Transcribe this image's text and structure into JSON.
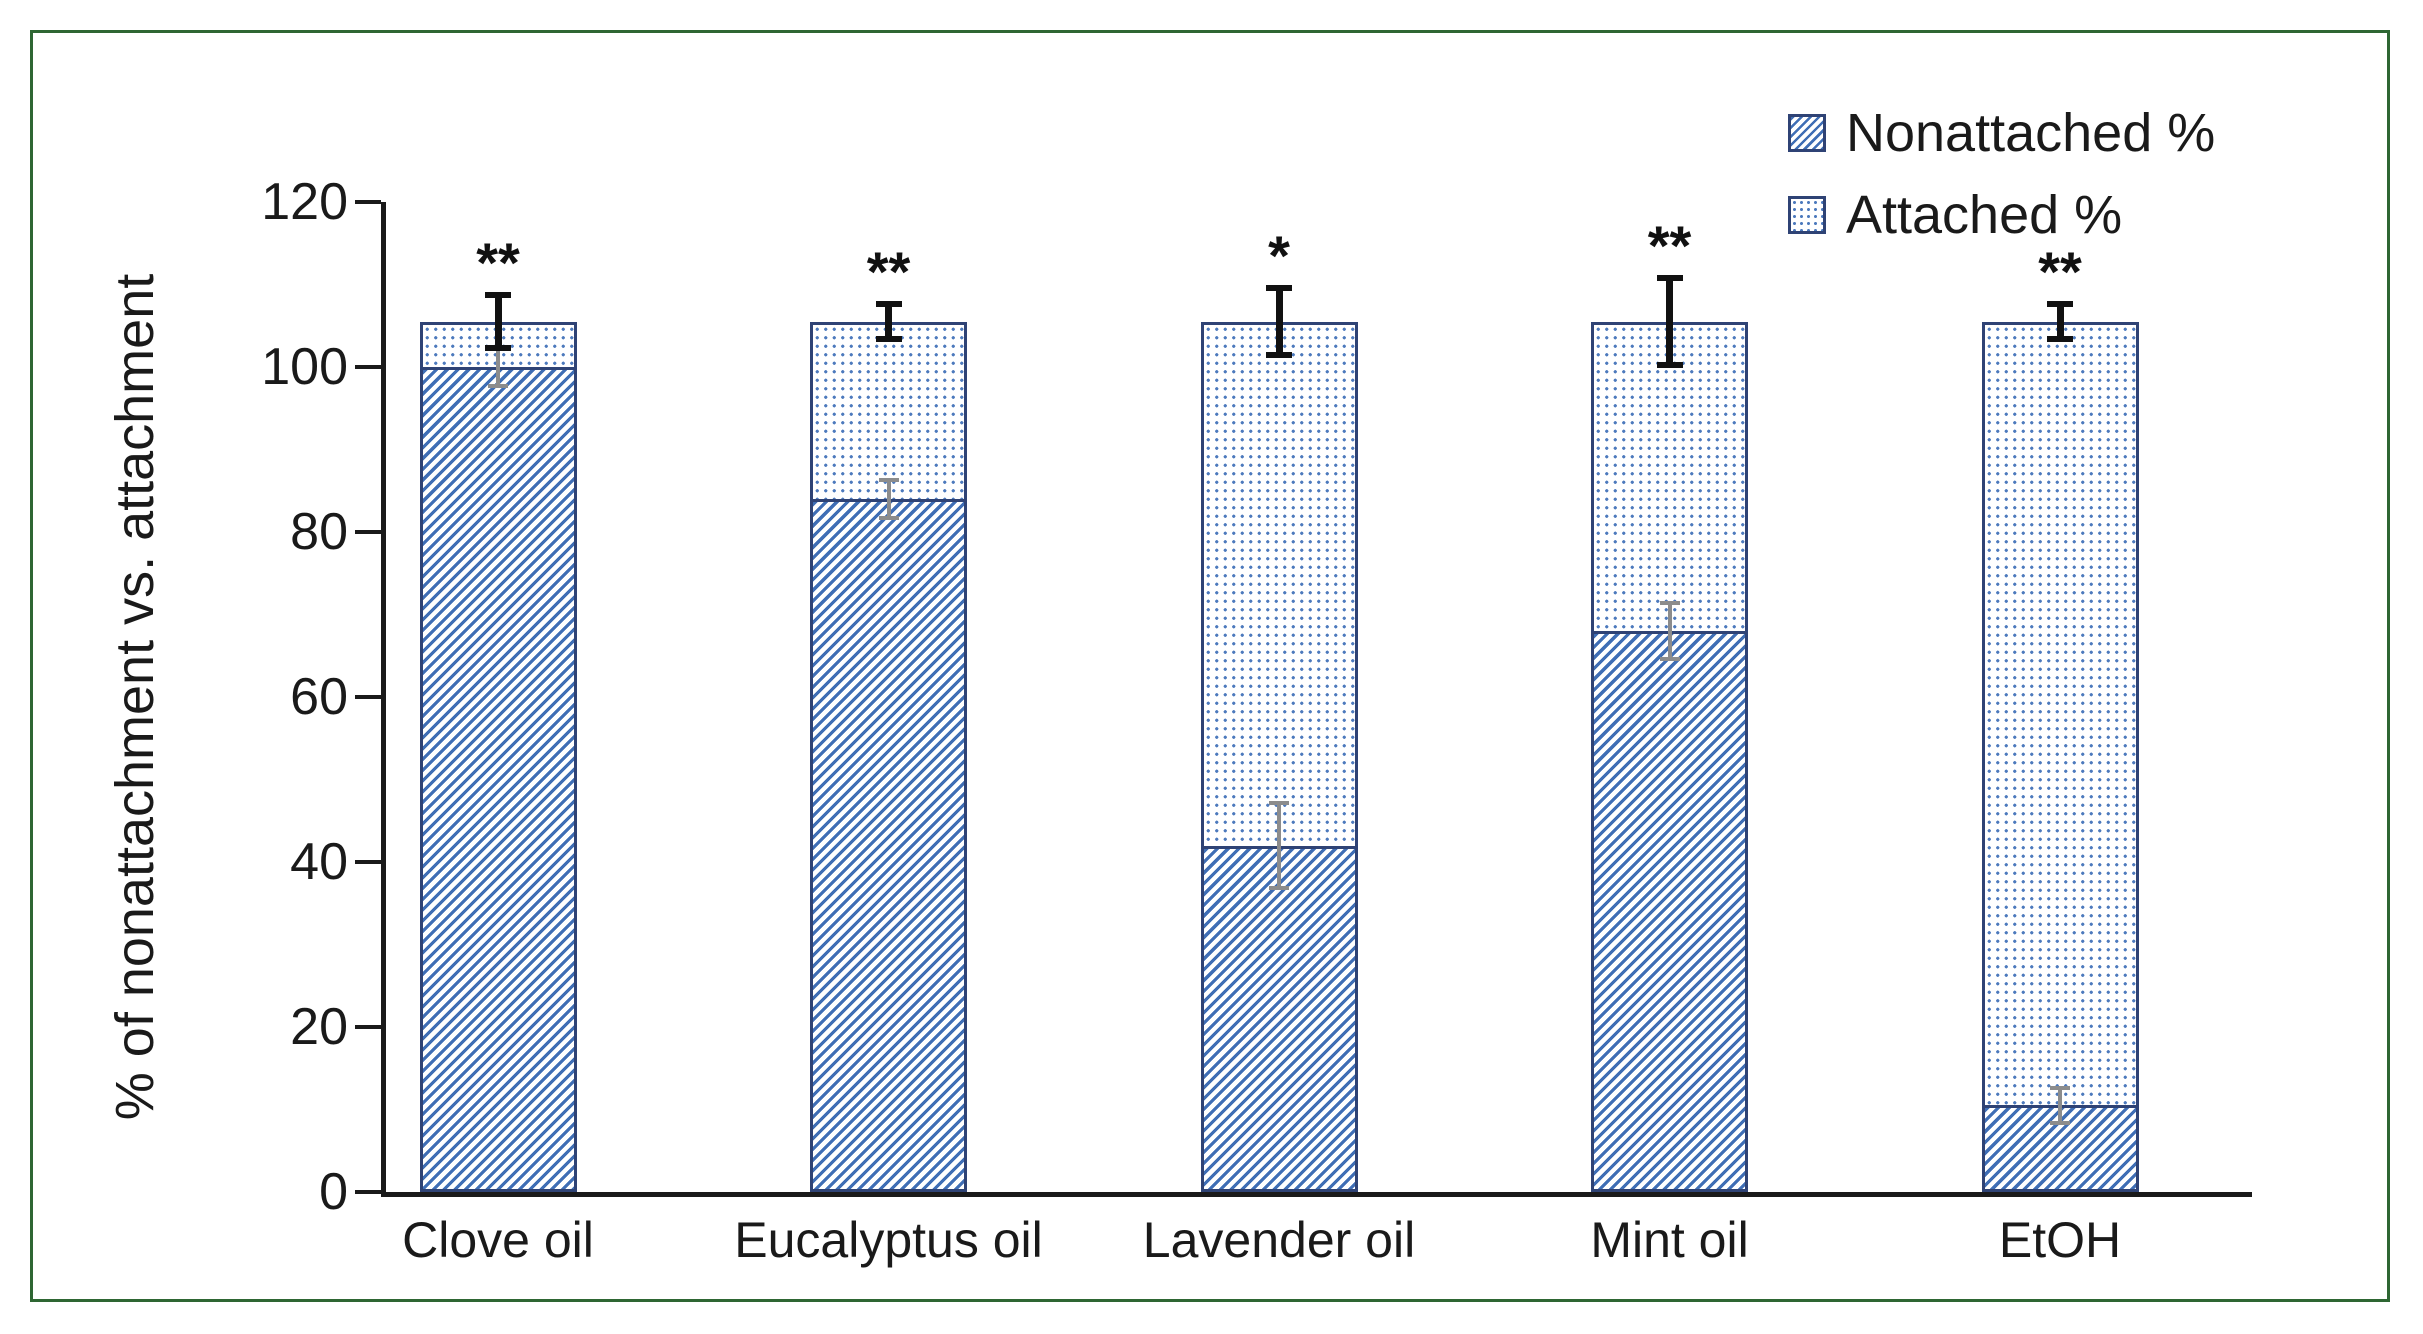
{
  "figure": {
    "frame_color": "#2e6633",
    "background": "#ffffff"
  },
  "colors": {
    "hatch_blue": "#3f6eb5",
    "dot_blue": "#4d7abd",
    "bar_border": "#2f4375",
    "error_black": "#111111",
    "error_gray": "#8c8c8c",
    "axis_black": "#1a1a1a"
  },
  "chart_data": {
    "type": "bar",
    "stacked": true,
    "grid": false,
    "title": "",
    "xlabel": "",
    "ylabel": "% of nonattachment vs. attachment",
    "ylim": [
      0,
      120
    ],
    "yticks": [
      0,
      20,
      40,
      60,
      80,
      100,
      120
    ],
    "categories": [
      "Clove oil",
      "Eucalyptus oil",
      "Lavender oil",
      "Mint oil",
      "EtOH"
    ],
    "series": [
      {
        "name": "Nonattached %",
        "pattern": "diagonal-hatch",
        "values": [
          100,
          84,
          42,
          68,
          10.5
        ],
        "errors": [
          2.3,
          2.3,
          5.2,
          3.4,
          2.1
        ],
        "error_color": "#8c8c8c"
      },
      {
        "name": "Attached %",
        "pattern": "dots",
        "values": [
          5.5,
          21.5,
          63.5,
          37.5,
          95
        ],
        "errors": null
      }
    ],
    "stack_totals": [
      105.5,
      105.5,
      105.5,
      105.5,
      105.5
    ],
    "total_errors": [
      3.2,
      2.1,
      4.1,
      5.3,
      2.1
    ],
    "total_error_color": "#111111",
    "significance": [
      "**",
      "**",
      "*",
      "**",
      "**"
    ],
    "legend_position": "top-right"
  }
}
